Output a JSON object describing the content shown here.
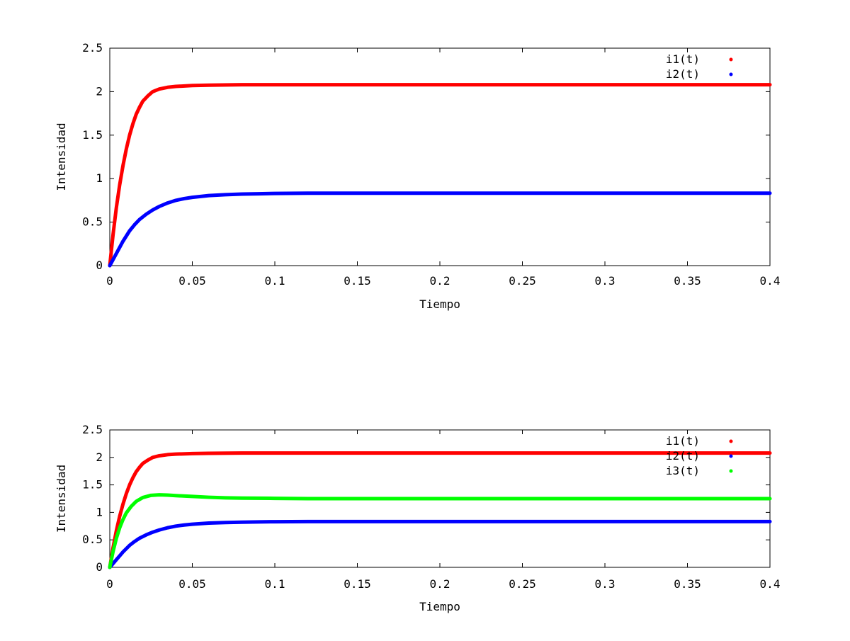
{
  "chart_data": [
    {
      "type": "scatter",
      "xlabel": "Tiempo",
      "ylabel": "Intensidad",
      "xlim": [
        0,
        0.4
      ],
      "ylim": [
        0,
        2.5
      ],
      "x_ticks": [
        "0",
        "0.05",
        "0.1",
        "0.15",
        "0.2",
        "0.25",
        "0.3",
        "0.35",
        "0.4"
      ],
      "x_tick_values": [
        0,
        0.05,
        0.1,
        0.15,
        0.2,
        0.25,
        0.3,
        0.35,
        0.4
      ],
      "y_ticks": [
        "0",
        "0.5",
        "1",
        "1.5",
        "2",
        "2.5"
      ],
      "y_tick_values": [
        0,
        0.5,
        1,
        1.5,
        2,
        2.5
      ],
      "legend_position": "top-right",
      "series": [
        {
          "name": "i1(t)",
          "color": "#ff0000",
          "points": [
            [
              0,
              0
            ],
            [
              0.002,
              0.36
            ],
            [
              0.004,
              0.67
            ],
            [
              0.006,
              0.93
            ],
            [
              0.008,
              1.15
            ],
            [
              0.01,
              1.34
            ],
            [
              0.012,
              1.5
            ],
            [
              0.014,
              1.63
            ],
            [
              0.016,
              1.74
            ],
            [
              0.018,
              1.82
            ],
            [
              0.02,
              1.89
            ],
            [
              0.023,
              1.95
            ],
            [
              0.026,
              2.0
            ],
            [
              0.03,
              2.03
            ],
            [
              0.035,
              2.05
            ],
            [
              0.04,
              2.06
            ],
            [
              0.05,
              2.07
            ],
            [
              0.06,
              2.075
            ],
            [
              0.08,
              2.08
            ],
            [
              0.1,
              2.08
            ],
            [
              0.15,
              2.08
            ],
            [
              0.2,
              2.08
            ],
            [
              0.25,
              2.08
            ],
            [
              0.3,
              2.08
            ],
            [
              0.35,
              2.08
            ],
            [
              0.4,
              2.08
            ]
          ]
        },
        {
          "name": "i2(t)",
          "color": "#0000ff",
          "points": [
            [
              0,
              0
            ],
            [
              0.002,
              0.07
            ],
            [
              0.004,
              0.14
            ],
            [
              0.006,
              0.21
            ],
            [
              0.008,
              0.28
            ],
            [
              0.01,
              0.34
            ],
            [
              0.012,
              0.4
            ],
            [
              0.015,
              0.47
            ],
            [
              0.018,
              0.53
            ],
            [
              0.022,
              0.59
            ],
            [
              0.026,
              0.64
            ],
            [
              0.03,
              0.68
            ],
            [
              0.035,
              0.72
            ],
            [
              0.04,
              0.75
            ],
            [
              0.045,
              0.77
            ],
            [
              0.05,
              0.785
            ],
            [
              0.06,
              0.805
            ],
            [
              0.07,
              0.815
            ],
            [
              0.08,
              0.822
            ],
            [
              0.09,
              0.826
            ],
            [
              0.1,
              0.83
            ],
            [
              0.12,
              0.833
            ],
            [
              0.15,
              0.833
            ],
            [
              0.2,
              0.833
            ],
            [
              0.25,
              0.833
            ],
            [
              0.3,
              0.833
            ],
            [
              0.35,
              0.833
            ],
            [
              0.4,
              0.833
            ]
          ]
        }
      ]
    },
    {
      "type": "scatter",
      "xlabel": "Tiempo",
      "ylabel": "Intensidad",
      "xlim": [
        0,
        0.4
      ],
      "ylim": [
        0,
        2.5
      ],
      "x_ticks": [
        "0",
        "0.05",
        "0.1",
        "0.15",
        "0.2",
        "0.25",
        "0.3",
        "0.35",
        "0.4"
      ],
      "x_tick_values": [
        0,
        0.05,
        0.1,
        0.15,
        0.2,
        0.25,
        0.3,
        0.35,
        0.4
      ],
      "y_ticks": [
        "0",
        "0.5",
        "1",
        "1.5",
        "2",
        "2.5"
      ],
      "y_tick_values": [
        0,
        0.5,
        1,
        1.5,
        2,
        2.5
      ],
      "legend_position": "top-right",
      "series": [
        {
          "name": "i1(t)",
          "color": "#ff0000",
          "points": [
            [
              0,
              0
            ],
            [
              0.002,
              0.36
            ],
            [
              0.004,
              0.67
            ],
            [
              0.006,
              0.93
            ],
            [
              0.008,
              1.15
            ],
            [
              0.01,
              1.34
            ],
            [
              0.012,
              1.5
            ],
            [
              0.014,
              1.63
            ],
            [
              0.016,
              1.74
            ],
            [
              0.018,
              1.82
            ],
            [
              0.02,
              1.89
            ],
            [
              0.023,
              1.95
            ],
            [
              0.026,
              2.0
            ],
            [
              0.03,
              2.03
            ],
            [
              0.035,
              2.05
            ],
            [
              0.04,
              2.06
            ],
            [
              0.05,
              2.07
            ],
            [
              0.06,
              2.075
            ],
            [
              0.08,
              2.08
            ],
            [
              0.1,
              2.08
            ],
            [
              0.15,
              2.08
            ],
            [
              0.2,
              2.08
            ],
            [
              0.25,
              2.08
            ],
            [
              0.3,
              2.08
            ],
            [
              0.35,
              2.08
            ],
            [
              0.4,
              2.08
            ]
          ]
        },
        {
          "name": "i2(t)",
          "color": "#0000ff",
          "points": [
            [
              0,
              0
            ],
            [
              0.002,
              0.07
            ],
            [
              0.004,
              0.14
            ],
            [
              0.006,
              0.21
            ],
            [
              0.008,
              0.28
            ],
            [
              0.01,
              0.34
            ],
            [
              0.012,
              0.4
            ],
            [
              0.015,
              0.47
            ],
            [
              0.018,
              0.53
            ],
            [
              0.022,
              0.59
            ],
            [
              0.026,
              0.64
            ],
            [
              0.03,
              0.68
            ],
            [
              0.035,
              0.72
            ],
            [
              0.04,
              0.75
            ],
            [
              0.045,
              0.77
            ],
            [
              0.05,
              0.785
            ],
            [
              0.06,
              0.805
            ],
            [
              0.07,
              0.815
            ],
            [
              0.08,
              0.822
            ],
            [
              0.09,
              0.826
            ],
            [
              0.1,
              0.83
            ],
            [
              0.12,
              0.833
            ],
            [
              0.15,
              0.833
            ],
            [
              0.2,
              0.833
            ],
            [
              0.25,
              0.833
            ],
            [
              0.3,
              0.833
            ],
            [
              0.35,
              0.833
            ],
            [
              0.4,
              0.833
            ]
          ]
        },
        {
          "name": "i3(t)",
          "color": "#00ff00",
          "points": [
            [
              0,
              0
            ],
            [
              0.002,
              0.29
            ],
            [
              0.004,
              0.53
            ],
            [
              0.006,
              0.72
            ],
            [
              0.008,
              0.87
            ],
            [
              0.01,
              0.99
            ],
            [
              0.013,
              1.11
            ],
            [
              0.016,
              1.2
            ],
            [
              0.02,
              1.27
            ],
            [
              0.025,
              1.31
            ],
            [
              0.03,
              1.32
            ],
            [
              0.035,
              1.315
            ],
            [
              0.04,
              1.305
            ],
            [
              0.05,
              1.29
            ],
            [
              0.06,
              1.275
            ],
            [
              0.07,
              1.265
            ],
            [
              0.08,
              1.26
            ],
            [
              0.1,
              1.255
            ],
            [
              0.12,
              1.25
            ],
            [
              0.15,
              1.25
            ],
            [
              0.2,
              1.25
            ],
            [
              0.25,
              1.25
            ],
            [
              0.3,
              1.25
            ],
            [
              0.35,
              1.25
            ],
            [
              0.4,
              1.25
            ]
          ]
        }
      ]
    }
  ]
}
